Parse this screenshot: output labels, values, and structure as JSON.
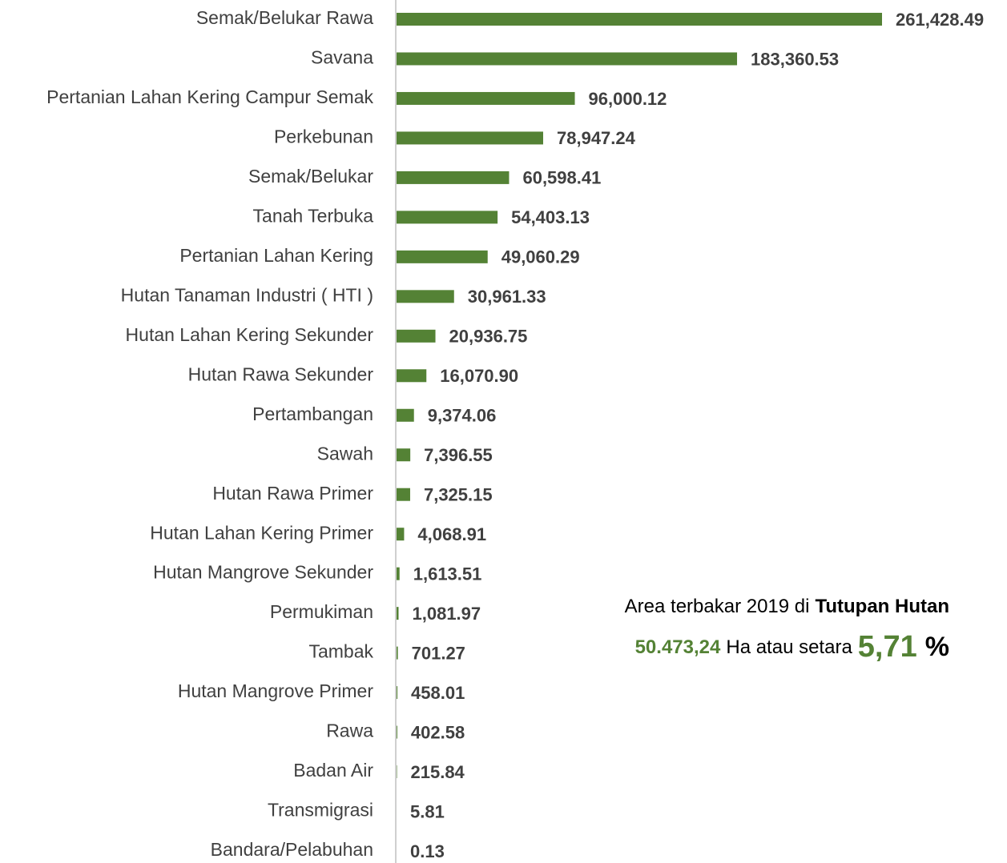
{
  "chart_data": {
    "type": "bar",
    "orientation": "horizontal",
    "color": "#548235",
    "categories": [
      "Semak/Belukar Rawa",
      "Savana",
      "Pertanian Lahan Kering Campur Semak",
      "Perkebunan",
      "Semak/Belukar",
      "Tanah Terbuka",
      "Pertanian Lahan Kering",
      "Hutan Tanaman Industri ( HTI )",
      "Hutan Lahan Kering Sekunder",
      "Hutan Rawa Sekunder",
      "Pertambangan",
      "Sawah",
      "Hutan Rawa Primer",
      "Hutan Lahan Kering Primer",
      "Hutan Mangrove Sekunder",
      "Permukiman",
      "Tambak",
      "Hutan Mangrove Primer",
      "Rawa",
      "Badan Air",
      "Transmigrasi",
      "Bandara/Pelabuhan"
    ],
    "values": [
      261428.49,
      183360.53,
      96000.12,
      78947.24,
      60598.41,
      54403.13,
      49060.29,
      30961.33,
      20936.75,
      16070.9,
      9374.06,
      7396.55,
      7325.15,
      4068.91,
      1613.51,
      1081.97,
      701.27,
      458.01,
      402.58,
      215.84,
      5.81,
      0.13
    ],
    "value_labels": [
      "261,428.49",
      "183,360.53",
      "96,000.12",
      "78,947.24",
      "60,598.41",
      "54,403.13",
      "49,060.29",
      "30,961.33",
      "20,936.75",
      "16,070.90",
      "9,374.06",
      "7,396.55",
      "7,325.15",
      "4,068.91",
      "1,613.51",
      "1,081.97",
      "701.27",
      "458.01",
      "402.58",
      "215.84",
      "5.81",
      "0.13"
    ],
    "annotation": {
      "line1": [
        "Area terbakar 2019 di",
        "Tutupan Hutan"
      ],
      "line2": [
        "50.473,24",
        "Ha atau setara",
        "5,71",
        "%"
      ]
    }
  }
}
